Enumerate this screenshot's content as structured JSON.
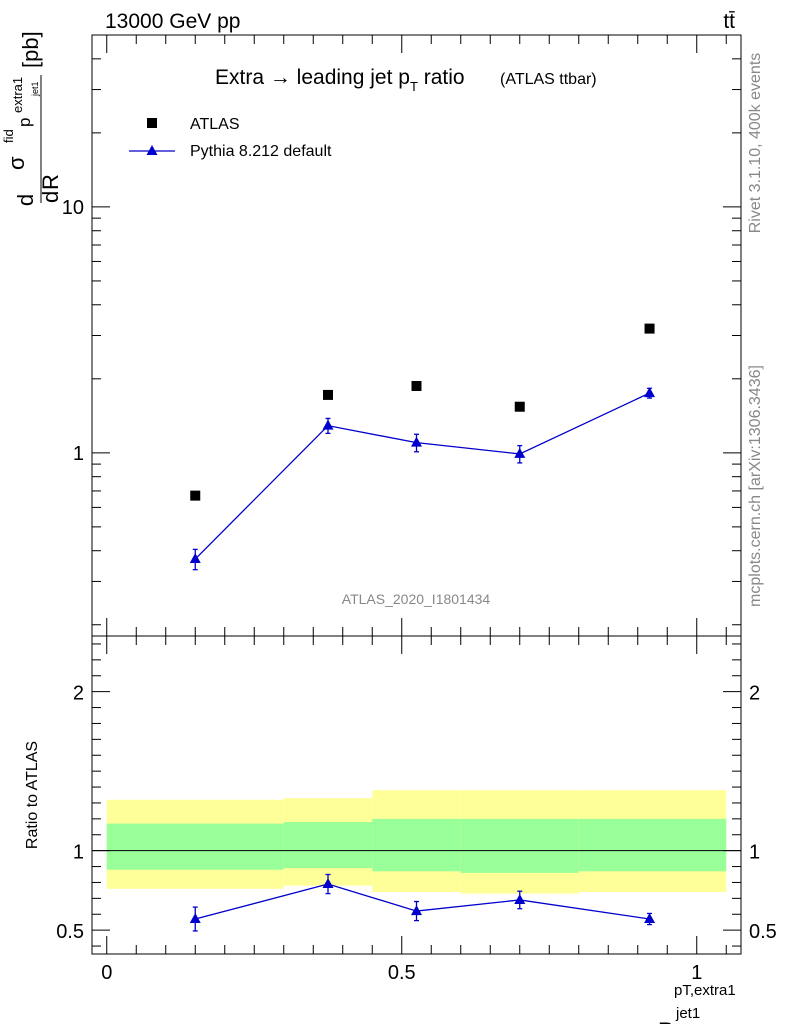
{
  "header": {
    "energy_label": "13000 GeV pp",
    "process_label": "tt̄"
  },
  "side_text": {
    "version": "Rivet 3.1.10,  400k events",
    "source": "mcplots.cern.ch [arXiv:1306.3436]"
  },
  "chart_data": [
    {
      "type": "scatter",
      "panel": "main",
      "title_main": "Extra → leading jet p",
      "title_sub": "T",
      "title_rest": " ratio",
      "title_note": "(ATLAS ttbar)",
      "ylabel": "dσ/dR [pb]",
      "ylabel_parts": {
        "d1": "d",
        "d2": "d",
        "sigma": "σ",
        "fid": "fid",
        "R": "R",
        "pb": "[pb]",
        "p": "p",
        "Tsub": "T",
        "extra1": "extra1",
        "jet1": "jet1"
      },
      "yscale": "log",
      "ylim": [
        0.18,
        50
      ],
      "xlim": [
        -0.025,
        1.075
      ],
      "yticks": [
        {
          "v": 1,
          "label": "1"
        },
        {
          "v": 10,
          "label": "10"
        }
      ],
      "analysis_label": "ATLAS_2020_I1801434",
      "legend": [
        {
          "name": "ATLAS",
          "marker": "square"
        },
        {
          "name": "Pythia 8.212 default",
          "marker": "triangle"
        }
      ],
      "series": [
        {
          "name": "ATLAS",
          "x": [
            0.15,
            0.375,
            0.525,
            0.7,
            0.92
          ],
          "y": [
            0.67,
            1.72,
            1.87,
            1.54,
            3.2
          ]
        },
        {
          "name": "Pythia 8.212 default",
          "x": [
            0.15,
            0.375,
            0.525,
            0.7,
            0.92
          ],
          "y": [
            0.37,
            1.29,
            1.1,
            0.99,
            1.75
          ],
          "yerr": [
            0.035,
            0.09,
            0.09,
            0.08,
            0.08
          ]
        }
      ]
    },
    {
      "type": "line",
      "panel": "ratio",
      "ylabel": "Ratio to ATLAS",
      "xlabel": "R",
      "xlabel_sup": "pT,extra1",
      "xlabel_sub": "jet1",
      "ylim": [
        0.35,
        2.35
      ],
      "xlim": [
        -0.025,
        1.075
      ],
      "yticks": [
        {
          "v": 0.5,
          "label": "0.5"
        },
        {
          "v": 1,
          "label": "1"
        },
        {
          "v": 2,
          "label": "2"
        }
      ],
      "xticks": [
        {
          "v": 0,
          "label": "0"
        },
        {
          "v": 0.5,
          "label": "0.5"
        },
        {
          "v": 1,
          "label": "1"
        }
      ],
      "bands": [
        {
          "x0": 0.0,
          "x1": 0.3,
          "inner": [
            0.88,
            1.17
          ],
          "outer": [
            0.76,
            1.32
          ]
        },
        {
          "x0": 0.3,
          "x1": 0.45,
          "inner": [
            0.89,
            1.18
          ],
          "outer": [
            0.78,
            1.33
          ]
        },
        {
          "x0": 0.45,
          "x1": 0.6,
          "inner": [
            0.87,
            1.2
          ],
          "outer": [
            0.74,
            1.38
          ]
        },
        {
          "x0": 0.6,
          "x1": 0.8,
          "inner": [
            0.86,
            1.2
          ],
          "outer": [
            0.73,
            1.38
          ]
        },
        {
          "x0": 0.8,
          "x1": 1.05,
          "inner": [
            0.87,
            1.2
          ],
          "outer": [
            0.74,
            1.38
          ]
        }
      ],
      "series": [
        {
          "name": "Pythia 8.212 default",
          "x": [
            0.15,
            0.375,
            0.525,
            0.7,
            0.92
          ],
          "y": [
            0.57,
            0.79,
            0.62,
            0.69,
            0.57
          ],
          "yerr": [
            0.075,
            0.06,
            0.06,
            0.055,
            0.035
          ]
        }
      ]
    }
  ]
}
